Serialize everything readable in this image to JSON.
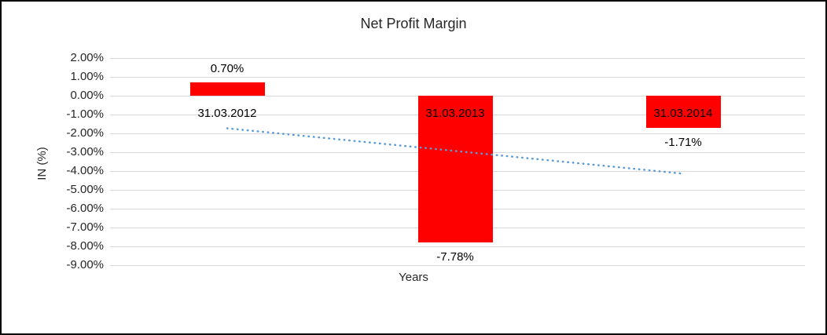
{
  "chart_data": {
    "type": "bar",
    "title": "Net Profit Margin",
    "xlabel": "Years",
    "ylabel": "IN (%)",
    "categories": [
      "31.03.2012",
      "31.03.2013",
      "31.03.2014"
    ],
    "values": [
      0.7,
      -7.78,
      -1.71
    ],
    "data_labels": [
      "0.70%",
      "-7.78%",
      "-1.71%"
    ],
    "tick_labels": [
      "2.00%",
      "1.00%",
      "0.00%",
      "-1.00%",
      "-2.00%",
      "-3.00%",
      "-4.00%",
      "-5.00%",
      "-6.00%",
      "-7.00%",
      "-8.00%",
      "-9.00%"
    ],
    "y_axis": {
      "min": -9,
      "max": 2,
      "step": 1
    },
    "grid": true,
    "legend": "none",
    "bar_color": "#ff0000",
    "gridline_color": "#d9d9d9",
    "trendline": {
      "style": "dotted",
      "color": "#5b9bd5",
      "start_value": -1.73,
      "end_value": -4.14
    }
  }
}
